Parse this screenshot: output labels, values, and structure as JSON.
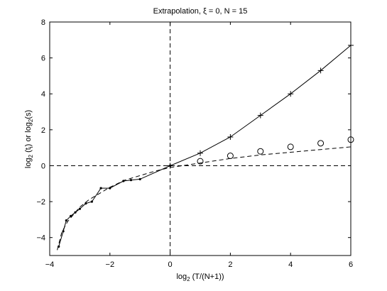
{
  "chart_data": {
    "type": "line",
    "title": "Extrapolation, ξ = 0, N = 15",
    "xlabel_main": "log",
    "xlabel_sub": "2",
    "xlabel_rest": " (T/(N+1))",
    "ylabel_part1": "log",
    "ylabel_sub1": "2",
    "ylabel_part2": " (t",
    "ylabel_sub2": "i",
    "ylabel_part3": ") or  log",
    "ylabel_sub3": "2",
    "ylabel_part4": "(s)",
    "xlim": [
      -4,
      6
    ],
    "ylim": [
      -5,
      8
    ],
    "x_ticks": [
      -4,
      -2,
      0,
      2,
      4,
      6
    ],
    "x_tick_labels": [
      "−4",
      "−2",
      "0",
      "2",
      "4",
      "6"
    ],
    "y_ticks": [
      -4,
      -2,
      0,
      2,
      4,
      6,
      8
    ],
    "y_tick_labels": [
      "−4",
      "−2",
      "0",
      "2",
      "4",
      "6",
      "8"
    ],
    "grid": false,
    "reference_lines": {
      "x_zero_dashed": true,
      "y_zero_dashed": true
    },
    "series": [
      {
        "style": "solid-dots",
        "points": [
          [
            -3.7,
            -4.5
          ],
          [
            -3.55,
            -3.65
          ],
          [
            -3.45,
            -3.05
          ],
          [
            -3.3,
            -2.8
          ],
          [
            -3.15,
            -2.6
          ],
          [
            -3.0,
            -2.4
          ],
          [
            -2.8,
            -2.1
          ],
          [
            -2.6,
            -2.0
          ],
          [
            -2.3,
            -1.25
          ],
          [
            -2.0,
            -1.25
          ],
          [
            -1.55,
            -0.85
          ],
          [
            -1.3,
            -0.8
          ],
          [
            -1.0,
            -0.75
          ],
          [
            0,
            0
          ]
        ]
      },
      {
        "style": "solid-plus",
        "points": [
          [
            0,
            0
          ],
          [
            1,
            0.7
          ],
          [
            2,
            1.6
          ],
          [
            3,
            2.8
          ],
          [
            4,
            4.0
          ],
          [
            5,
            5.3
          ],
          [
            6,
            6.7
          ]
        ]
      },
      {
        "style": "dashed-fit",
        "points": [
          [
            -3.75,
            -4.7
          ],
          [
            -3.6,
            -3.7
          ],
          [
            -3.4,
            -3.1
          ],
          [
            -3.2,
            -2.7
          ],
          [
            -3.0,
            -2.3
          ],
          [
            -2.7,
            -1.9
          ],
          [
            -2.3,
            -1.5
          ],
          [
            -2.0,
            -1.2
          ],
          [
            -1.5,
            -0.8
          ],
          [
            -1.0,
            -0.55
          ],
          [
            -0.5,
            -0.3
          ],
          [
            0,
            -0.1
          ],
          [
            1,
            0.15
          ],
          [
            2,
            0.4
          ],
          [
            3,
            0.6
          ],
          [
            4,
            0.75
          ],
          [
            5,
            0.9
          ],
          [
            6,
            1.05
          ]
        ]
      },
      {
        "style": "circles",
        "points": [
          [
            1,
            0.25
          ],
          [
            2,
            0.55
          ],
          [
            3,
            0.8
          ],
          [
            4,
            1.05
          ],
          [
            5,
            1.25
          ],
          [
            6,
            1.45
          ]
        ]
      }
    ]
  }
}
